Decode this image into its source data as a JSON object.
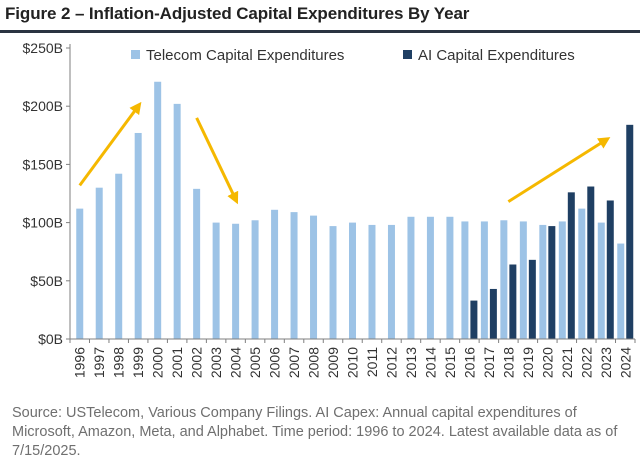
{
  "title": "Figure 2 – Inflation-Adjusted Capital Expenditures By Year",
  "source_note": "Source: USTelecom, Various Company Filings. AI Capex: Annual capital expenditures of Microsoft, Amazon, Meta, and Alphabet. Time period: 1996 to 2024. Latest available data as of 7/15/2025.",
  "colors": {
    "telecom": "#9dc3e6",
    "ai": "#1f3f63",
    "arrows": "#f5b800",
    "axis": "#7f7f7f",
    "title_rule": "#2a3441"
  },
  "chart_data": {
    "type": "bar",
    "categories": [
      "1996",
      "1997",
      "1998",
      "1999",
      "2000",
      "2001",
      "2002",
      "2003",
      "2004",
      "2005",
      "2006",
      "2007",
      "2008",
      "2009",
      "2010",
      "2011",
      "2012",
      "2013",
      "2014",
      "2015",
      "2016",
      "2017",
      "2018",
      "2019",
      "2020",
      "2021",
      "2022",
      "2023",
      "2024"
    ],
    "series": [
      {
        "name": "Telecom Capital Expenditures",
        "values": [
          112,
          130,
          142,
          177,
          221,
          202,
          129,
          100,
          99,
          102,
          111,
          109,
          106,
          97,
          100,
          98,
          98,
          105,
          105,
          105,
          101,
          101,
          102,
          101,
          98,
          101,
          112,
          100,
          82
        ]
      },
      {
        "name": "AI Capital Expenditures",
        "values": [
          null,
          null,
          null,
          null,
          null,
          null,
          null,
          null,
          null,
          null,
          null,
          null,
          null,
          null,
          null,
          null,
          null,
          null,
          null,
          null,
          33,
          43,
          64,
          68,
          97,
          126,
          131,
          119,
          184
        ]
      }
    ],
    "y_ticks": [
      "$0B",
      "$50B",
      "$100B",
      "$150B",
      "$200B",
      "$250B"
    ],
    "ylim": [
      0,
      250
    ],
    "y_unit": "billion USD",
    "legend_position": "top",
    "grid": false,
    "annotations": [
      {
        "type": "arrow",
        "from": {
          "x": "1996",
          "y": 132
        },
        "to": {
          "x": "1999",
          "y": 200
        }
      },
      {
        "type": "arrow",
        "from": {
          "x": "2002",
          "y": 190
        },
        "to": {
          "x": "2004",
          "y": 120
        }
      },
      {
        "type": "arrow",
        "from": {
          "x": "2018",
          "y": 118
        },
        "to": {
          "x": "2023",
          "y": 171
        }
      }
    ]
  }
}
